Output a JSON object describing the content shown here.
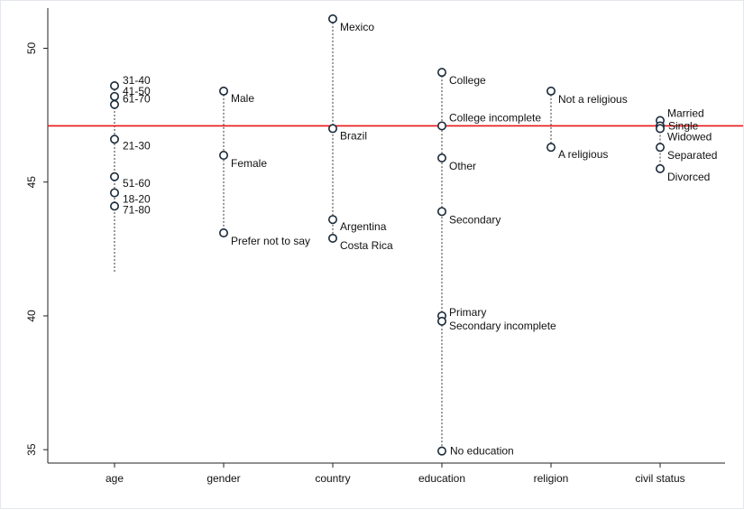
{
  "chart_data": {
    "type": "scatter",
    "title": "",
    "xlabel": "",
    "ylabel": "",
    "ylim": [
      34.5,
      51.5
    ],
    "yticks": [
      35,
      40,
      45,
      50
    ],
    "grid": false,
    "reference_line": {
      "y": 47.1,
      "color": "#e8151b"
    },
    "marker_color": "#1a2a3a",
    "drop_line_color": "#7a7a7a",
    "categories": [
      "age",
      "gender",
      "country",
      "education",
      "religion",
      "civil status"
    ],
    "groups": [
      {
        "category": "age",
        "line_min": 41.6,
        "points": [
          {
            "label": "31-40",
            "value": 48.6
          },
          {
            "label": "41-50",
            "value": 48.2
          },
          {
            "label": "61-70",
            "value": 47.9
          },
          {
            "label": "21-30",
            "value": 46.6
          },
          {
            "label": "51-60",
            "value": 45.2
          },
          {
            "label": "18-20",
            "value": 44.6
          },
          {
            "label": "71-80",
            "value": 44.1
          }
        ]
      },
      {
        "category": "gender",
        "points": [
          {
            "label": "Male",
            "value": 48.4
          },
          {
            "label": "Female",
            "value": 46.0
          },
          {
            "label": "Prefer not to say",
            "value": 43.1
          }
        ]
      },
      {
        "category": "country",
        "points": [
          {
            "label": "Mexico",
            "value": 51.1
          },
          {
            "label": "Brazil",
            "value": 47.0
          },
          {
            "label": "Argentina",
            "value": 43.6
          },
          {
            "label": "Costa Rica",
            "value": 42.9
          }
        ]
      },
      {
        "category": "education",
        "points": [
          {
            "label": "College",
            "value": 49.1
          },
          {
            "label": "College incomplete",
            "value": 47.1
          },
          {
            "label": "Other",
            "value": 45.9
          },
          {
            "label": "Secondary",
            "value": 43.9
          },
          {
            "label": "Primary",
            "value": 40.0
          },
          {
            "label": "Secondary incomplete",
            "value": 39.8
          },
          {
            "label": "No education",
            "value": 34.95
          }
        ]
      },
      {
        "category": "religion",
        "points": [
          {
            "label": "Not a religious",
            "value": 48.4
          },
          {
            "label": "A religious",
            "value": 46.3
          }
        ]
      },
      {
        "category": "civil status",
        "points": [
          {
            "label": "Married",
            "value": 47.3
          },
          {
            "label": "Single",
            "value": 47.1
          },
          {
            "label": "Widowed",
            "value": 47.0
          },
          {
            "label": "Separated",
            "value": 46.3
          },
          {
            "label": "Divorced",
            "value": 45.5
          }
        ]
      }
    ]
  }
}
